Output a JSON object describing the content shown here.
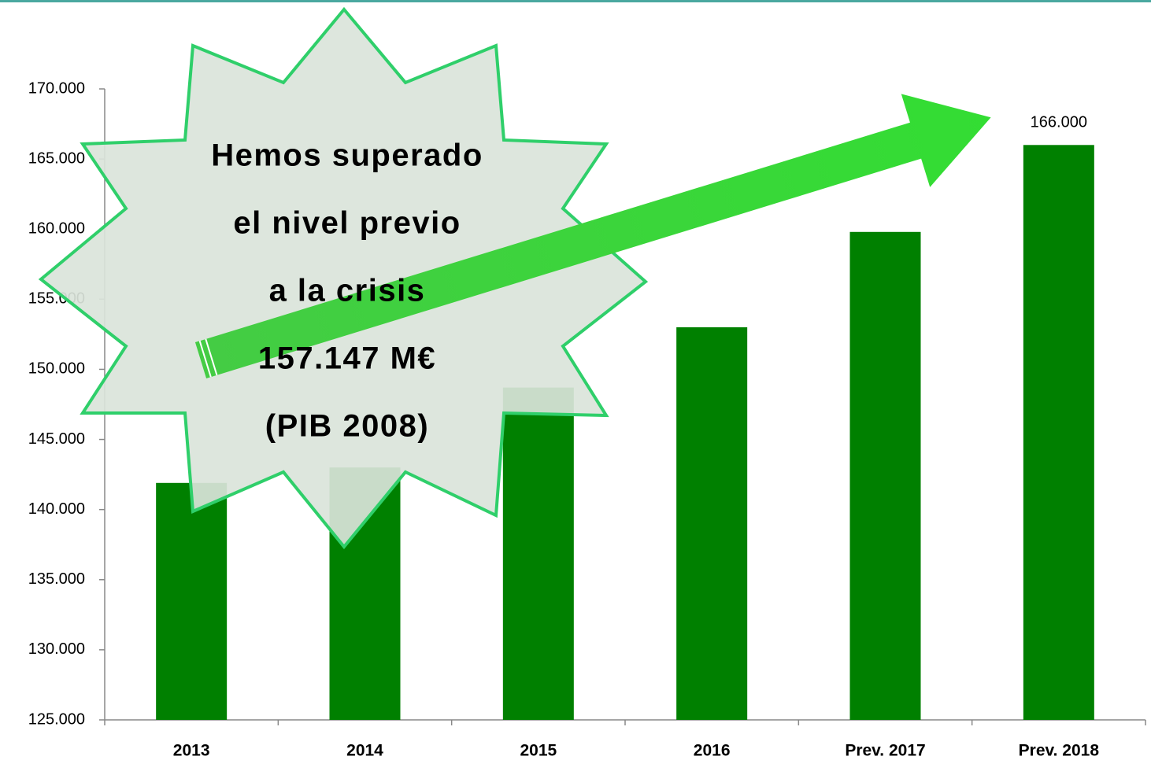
{
  "chart_data": {
    "type": "bar",
    "categories": [
      "2013",
      "2014",
      "2015",
      "2016",
      "Prev. 2017",
      "Prev. 2018"
    ],
    "values": [
      141900,
      143000,
      148700,
      153000,
      159800,
      166000
    ],
    "value_labels": [
      null,
      null,
      null,
      null,
      null,
      "166.000"
    ],
    "color": "#008000",
    "ylim": [
      125000,
      170000
    ],
    "yticks": [
      {
        "value": 125000,
        "label": "125.000"
      },
      {
        "value": 130000,
        "label": "130.000"
      },
      {
        "value": 135000,
        "label": "135.000"
      },
      {
        "value": 140000,
        "label": "140.000"
      },
      {
        "value": 145000,
        "label": "145.000"
      },
      {
        "value": 150000,
        "label": "150.000"
      },
      {
        "value": 155000,
        "label": "155.000"
      },
      {
        "value": 160000,
        "label": "160.000"
      },
      {
        "value": 165000,
        "label": "165.000"
      },
      {
        "value": 170000,
        "label": "170.000"
      }
    ],
    "grid": false,
    "annotation": [
      "Hemos superado",
      "el nivel previo",
      "a la crisis",
      "157.147 M€",
      "(PIB 2008)"
    ]
  }
}
